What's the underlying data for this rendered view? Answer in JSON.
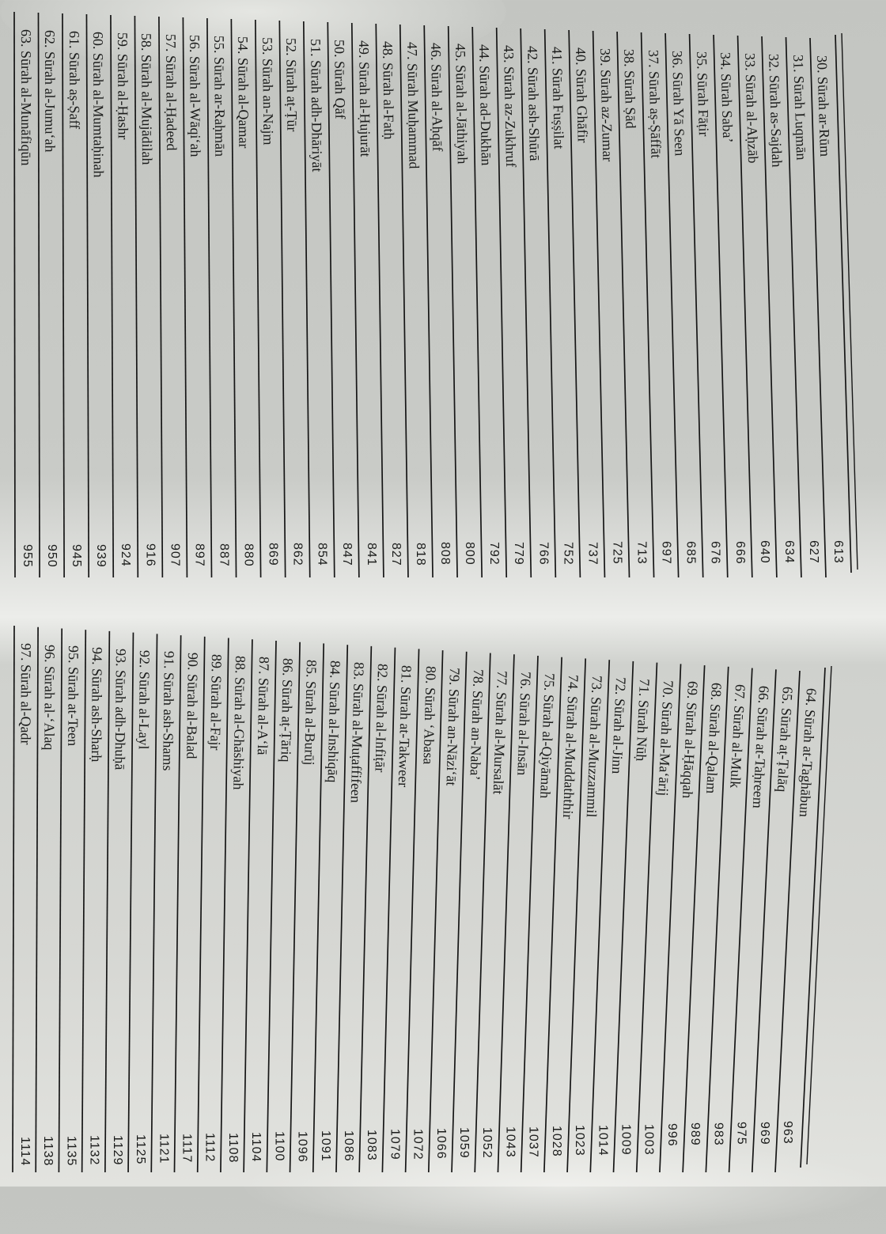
{
  "pages": [
    {
      "entries": [
        {
          "label": "30. Sūrah ar-Rūm",
          "page": "613"
        },
        {
          "label": "31. Sūrah Luqmān",
          "page": "627"
        },
        {
          "label": "32. Sūrah as-Sajdah",
          "page": "634"
        },
        {
          "label": "33. Sūrah al-Aḥzāb",
          "page": "640"
        },
        {
          "label": "34. Sūrah Saba’",
          "page": "666"
        },
        {
          "label": "35. Sūrah Fāṭir",
          "page": "676"
        },
        {
          "label": "36. Sūrah Yā Seen",
          "page": "685"
        },
        {
          "label": "37. Sūrah aṣ-Ṣāffāt",
          "page": "697"
        },
        {
          "label": "38. Sūrah Ṣād",
          "page": "713"
        },
        {
          "label": "39. Sūrah az-Zumar",
          "page": "725"
        },
        {
          "label": "40. Sūrah Ghāfir",
          "page": "737"
        },
        {
          "label": "41. Sūrah Fuṣṣilat",
          "page": "752"
        },
        {
          "label": "42. Sūrah ash-Shūrā",
          "page": "766"
        },
        {
          "label": "43. Sūrah az-Zukhruf",
          "page": "779"
        },
        {
          "label": "44. Sūrah ad-Dukhān",
          "page": "792"
        },
        {
          "label": "45. Sūrah al-Jāthiyah",
          "page": "800"
        },
        {
          "label": "46. Sūrah al-Aḥqāf",
          "page": "808"
        },
        {
          "label": "47. Sūrah Muḥammad",
          "page": "818"
        },
        {
          "label": "48. Sūrah al-Fatḥ",
          "page": "827"
        },
        {
          "label": "49. Sūrah al-Ḥujurāt",
          "page": "841"
        },
        {
          "label": "50. Sūrah Qāf",
          "page": "847"
        },
        {
          "label": "51. Sūrah adh-Dhāriyāt",
          "page": "854"
        },
        {
          "label": "52. Sūrah aṭ-Ṭūr",
          "page": "862"
        },
        {
          "label": "53. Sūrah an-Najm",
          "page": "869"
        },
        {
          "label": "54. Sūrah al-Qamar",
          "page": "880"
        },
        {
          "label": "55. Sūrah ar-Raḥmān",
          "page": "887"
        },
        {
          "label": "56. Sūrah al-Wāqi‘ah",
          "page": "897"
        },
        {
          "label": "57. Sūrah al-Ḥadeed",
          "page": "907"
        },
        {
          "label": "58. Sūrah al-Mujādilah",
          "page": "916"
        },
        {
          "label": "59. Sūrah al-Ḥashr",
          "page": "924"
        },
        {
          "label": "60. Sūrah al-Mumtaḥinah",
          "page": "939"
        },
        {
          "label": "61. Sūrah aṣ-Ṣaff",
          "page": "945"
        },
        {
          "label": "62. Sūrah al-Jumu‘ah",
          "page": "950"
        },
        {
          "label": "63. Sūrah al-Munāfiqūn",
          "page": "955"
        }
      ]
    },
    {
      "entries": [
        {
          "label": "64. Sūrah at-Taghābun",
          "page": "963"
        },
        {
          "label": "65. Sūrah aṭ-Ṭalāq",
          "page": "969"
        },
        {
          "label": "66. Sūrah at-Taḥreem",
          "page": "975"
        },
        {
          "label": "67. Sūrah al-Mulk",
          "page": "983"
        },
        {
          "label": "68. Sūrah al-Qalam",
          "page": "989"
        },
        {
          "label": "69. Sūrah al-Ḥāqqah",
          "page": "996"
        },
        {
          "label": "70. Sūrah al-Ma‘ārij",
          "page": "1003"
        },
        {
          "label": "71. Sūrah Nūḥ",
          "page": "1009"
        },
        {
          "label": "72. Sūrah al-Jinn",
          "page": "1014"
        },
        {
          "label": "73. Sūrah al-Muzzammil",
          "page": "1023"
        },
        {
          "label": "74. Sūrah al-Muddaththir",
          "page": "1028"
        },
        {
          "label": "75. Sūrah al-Qiyāmah",
          "page": "1037"
        },
        {
          "label": "76. Sūrah al-Insān",
          "page": "1043"
        },
        {
          "label": "77. Sūrah al-Mursalāt",
          "page": "1052"
        },
        {
          "label": "78. Sūrah an-Naba’",
          "page": "1059"
        },
        {
          "label": "79. Sūrah an-Nāzi‘āt",
          "page": "1066"
        },
        {
          "label": "80. Sūrah ‘Abasa",
          "page": "1072"
        },
        {
          "label": "81. Sūrah at-Takweer",
          "page": "1079"
        },
        {
          "label": "82. Sūrah al-Infiṭār",
          "page": "1083"
        },
        {
          "label": "83. Sūrah al-Muṭaffifeen",
          "page": "1086"
        },
        {
          "label": "84. Sūrah al-Inshiqāq",
          "page": "1091"
        },
        {
          "label": "85. Sūrah al-Burūj",
          "page": "1096"
        },
        {
          "label": "86. Sūrah aṭ-Ṭāriq",
          "page": "1100"
        },
        {
          "label": "87. Sūrah al-A‘lā",
          "page": "1104"
        },
        {
          "label": "88. Sūrah al-Ghāshiyah",
          "page": "1108"
        },
        {
          "label": "89. Sūrah al-Fajr",
          "page": "1112"
        },
        {
          "label": "90. Sūrah al-Balad",
          "page": "1117"
        },
        {
          "label": "91. Sūrah ash-Shams",
          "page": "1121"
        },
        {
          "label": "92. Sūrah al-Layl",
          "page": "1125"
        },
        {
          "label": "93. Sūrah adh-Dhuḥā",
          "page": "1129"
        },
        {
          "label": "94. Sūrah ash-Sharḥ",
          "page": "1132"
        },
        {
          "label": "95. Sūrah at-Teen",
          "page": "1135"
        },
        {
          "label": "96. Sūrah al-‘Alaq",
          "page": "1138"
        },
        {
          "label": "97. Sūrah al-Qadr",
          "page": "1114"
        }
      ]
    }
  ]
}
